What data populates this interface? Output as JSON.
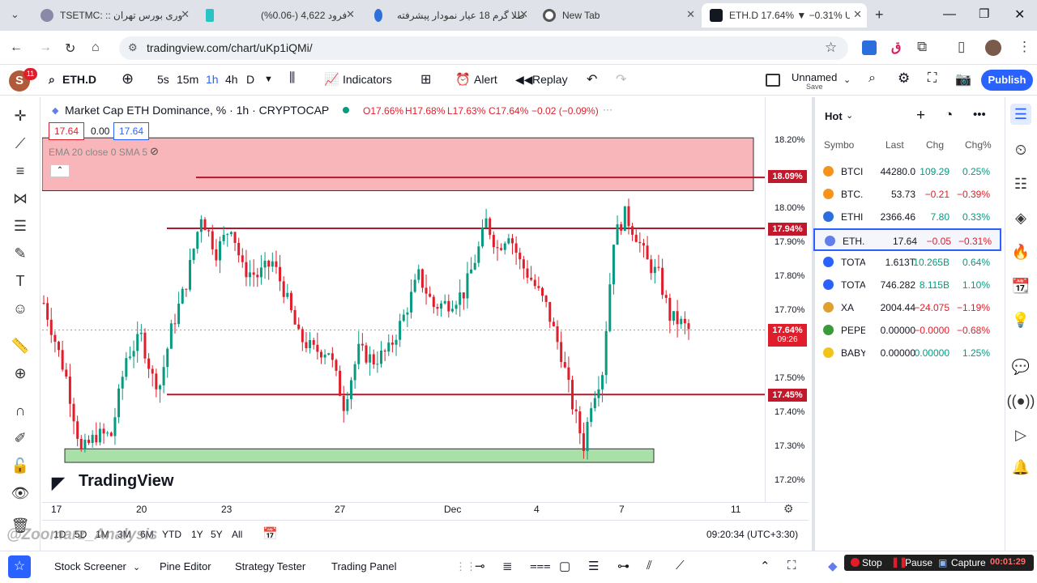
{
  "browser": {
    "tabs": [
      {
        "title": "TSETMC: :: وری بورس تهران"
      },
      {
        "title": "فرود 4,622 (-0.06%)"
      },
      {
        "title": "طلا گرم 18 عیار نمودار پیشرفته"
      },
      {
        "title": "New Tab"
      },
      {
        "title": "ETH.D 17.64% ▼ −0.31% Un"
      }
    ],
    "new_tab_symbol": "+",
    "url": "tradingview.com/chart/uKp1iQMi/",
    "profile_letter": "ق"
  },
  "toolbar": {
    "avatar_letter": "S",
    "avatar_badge": "11",
    "symbol": "ETH.D",
    "intervals": [
      "5s",
      "15m",
      "1h",
      "4h",
      "D"
    ],
    "indicators_label": "Indicators",
    "alert_label": "Alert",
    "replay_label": "Replay",
    "layout_name": "Unnamed",
    "layout_sub": "Save",
    "publish_label": "Publish"
  },
  "legend": {
    "title": "Market Cap ETH Dominance, % · 1h · CRYPTOCAP",
    "o": "O17.66%",
    "h": "H17.68%",
    "l": "L17.63%",
    "c": "C17.64%",
    "change": "−0.02 (−0.09%)",
    "bid": "17.64",
    "spread": "0.00",
    "ask": "17.64",
    "ema": "EMA 20 close 0 SMA 5",
    "pct_button": "%"
  },
  "price_axis": {
    "labels": [
      "18.20%",
      "18.00%",
      "17.90%",
      "17.80%",
      "17.70%",
      "17.50%",
      "17.40%",
      "17.30%",
      "17.20%"
    ],
    "badges": [
      {
        "text": "18.09%"
      },
      {
        "text": "17.94%"
      },
      {
        "text": "17.64%",
        "sub": "09:26"
      },
      {
        "text": "17.45%"
      }
    ]
  },
  "time_axis": [
    "17",
    "20",
    "23",
    "27",
    "Dec",
    "4",
    "7",
    "11"
  ],
  "watermark": "TradingView",
  "overlay_text": "@Zoomarz_Analysis",
  "chart_data": {
    "type": "candlestick",
    "title": "Market Cap ETH Dominance, % · 1h · CRYPTOCAP",
    "x_ticks": [
      "17",
      "20",
      "23",
      "27",
      "Dec",
      "4",
      "7",
      "11"
    ],
    "ylim": [
      17.18,
      18.24
    ],
    "y_ticks": [
      17.2,
      17.3,
      17.4,
      17.5,
      17.7,
      17.8,
      17.9,
      18.0,
      18.2
    ],
    "horizontal_levels": [
      18.09,
      17.94,
      17.45
    ],
    "current_price": 17.64,
    "zones": [
      {
        "type": "resistance",
        "from": 18.07,
        "to": 18.24,
        "color": "#f7a8ae"
      },
      {
        "type": "support",
        "from": 17.25,
        "to": 17.29,
        "color": "#a8e0a8"
      }
    ],
    "close_path": [
      [
        0,
        17.72
      ],
      [
        6,
        17.5
      ],
      [
        10,
        17.28
      ],
      [
        14,
        17.33
      ],
      [
        18,
        17.33
      ],
      [
        22,
        17.56
      ],
      [
        26,
        17.62
      ],
      [
        29,
        17.5
      ],
      [
        31,
        17.48
      ],
      [
        34,
        17.64
      ],
      [
        38,
        17.78
      ],
      [
        42,
        17.98
      ],
      [
        46,
        17.87
      ],
      [
        50,
        17.95
      ],
      [
        53,
        17.82
      ],
      [
        57,
        17.8
      ],
      [
        61,
        17.84
      ],
      [
        64,
        17.76
      ],
      [
        68,
        17.62
      ],
      [
        72,
        17.58
      ],
      [
        76,
        17.58
      ],
      [
        80,
        17.42
      ],
      [
        84,
        17.58
      ],
      [
        88,
        17.55
      ],
      [
        92,
        17.58
      ],
      [
        96,
        17.68
      ],
      [
        100,
        17.8
      ],
      [
        104,
        17.71
      ],
      [
        108,
        17.72
      ],
      [
        112,
        17.75
      ],
      [
        116,
        17.88
      ],
      [
        118,
        17.96
      ],
      [
        121,
        17.88
      ],
      [
        124,
        17.93
      ],
      [
        127,
        17.84
      ],
      [
        130,
        17.79
      ],
      [
        134,
        17.71
      ],
      [
        138,
        17.57
      ],
      [
        141,
        17.42
      ],
      [
        144,
        17.3
      ],
      [
        146,
        17.43
      ],
      [
        149,
        17.52
      ],
      [
        152,
        17.91
      ],
      [
        155,
        17.98
      ],
      [
        158,
        17.92
      ],
      [
        161,
        17.84
      ],
      [
        164,
        17.8
      ],
      [
        167,
        17.68
      ],
      [
        170,
        17.66
      ],
      [
        172,
        17.64
      ]
    ]
  },
  "range": {
    "buttons": [
      "1D",
      "5D",
      "1M",
      "3M",
      "6M",
      "YTD",
      "1Y",
      "5Y",
      "All"
    ],
    "clock": "09:20:34 (UTC+3:30)"
  },
  "watchlist": {
    "name": "Hot",
    "headers": {
      "symbol": "Symbo",
      "last": "Last",
      "chg": "Chg",
      "chgp": "Chg%"
    },
    "rows": [
      {
        "sym": "BTCI",
        "last": "44280.0",
        "chg": "109.29",
        "chgp": "0.25%",
        "color": "#f7931a",
        "pos": true
      },
      {
        "sym": "BTC.",
        "last": "53.73",
        "chg": "−0.21",
        "chgp": "−0.39%",
        "color": "#f7931a",
        "pos": false
      },
      {
        "sym": "ETHI",
        "last": "2366.46",
        "chg": "7.80",
        "chgp": "0.33%",
        "color": "#2a6fdb",
        "pos": true
      },
      {
        "sym": "ETH.",
        "last": "17.64",
        "chg": "−0.05",
        "chgp": "−0.31%",
        "color": "#627eea",
        "pos": false
      },
      {
        "sym": "TOTA",
        "last": "1.613T",
        "chg": "10.265B",
        "chgp": "0.64%",
        "color": "#2962ff",
        "pos": true
      },
      {
        "sym": "TOTA",
        "last": "746.282",
        "chg": "8.115B",
        "chgp": "1.10%",
        "color": "#2962ff",
        "pos": true
      },
      {
        "sym": "XA",
        "last": "2004.44",
        "chg": "−24.075",
        "chgp": "−1.19%",
        "color": "#e0a030",
        "pos": false
      },
      {
        "sym": "PEPE",
        "last": "0.00000",
        "chg": "−0.0000",
        "chgp": "−0.68%",
        "color": "#3a9a3a",
        "pos": false
      },
      {
        "sym": "BABY",
        "last": "0.00000",
        "chg": "0.00000",
        "chgp": "1.25%",
        "color": "#f0c419",
        "pos": true
      }
    ]
  },
  "bottom": {
    "tabs": [
      "Stock Screener",
      "Pine Editor",
      "Strategy Tester",
      "Trading Panel"
    ],
    "rec_stop": "Stop",
    "rec_pause": "Pause",
    "rec_capture": "Capture",
    "rec_time": "00:01:29"
  },
  "colors": {
    "accent": "#2962ff",
    "red": "#e01e2b",
    "green": "#089981",
    "level": "#b2182b"
  }
}
